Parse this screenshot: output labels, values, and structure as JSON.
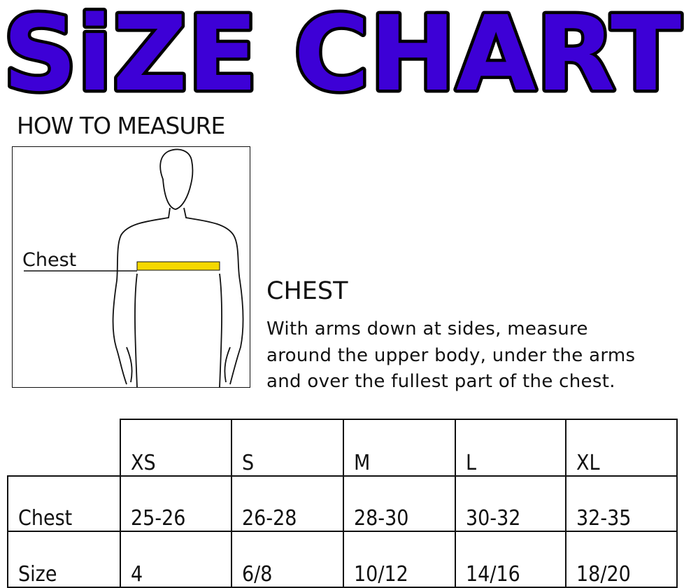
{
  "title": "SiZE CHART",
  "colors": {
    "title_fill": "#3d00d6",
    "title_outline": "#000000",
    "tape": "#f5d800"
  },
  "how_to_measure": "HOW TO MEASURE",
  "figure": {
    "label": "Chest"
  },
  "chest_section": {
    "heading": "CHEST",
    "lines": [
      "With arms down at sides, measure",
      "around the upper body, under the arms",
      "and over the fullest part of the chest."
    ]
  },
  "table": {
    "columns": [
      "XS",
      "S",
      "M",
      "L",
      "XL"
    ],
    "rows": [
      {
        "label": "Chest",
        "values": [
          "25-26",
          "26-28",
          "28-30",
          "30-32",
          "32-35"
        ]
      },
      {
        "label": "Size",
        "values": [
          "4",
          "6/8",
          "10/12",
          "14/16",
          "18/20"
        ]
      }
    ]
  }
}
